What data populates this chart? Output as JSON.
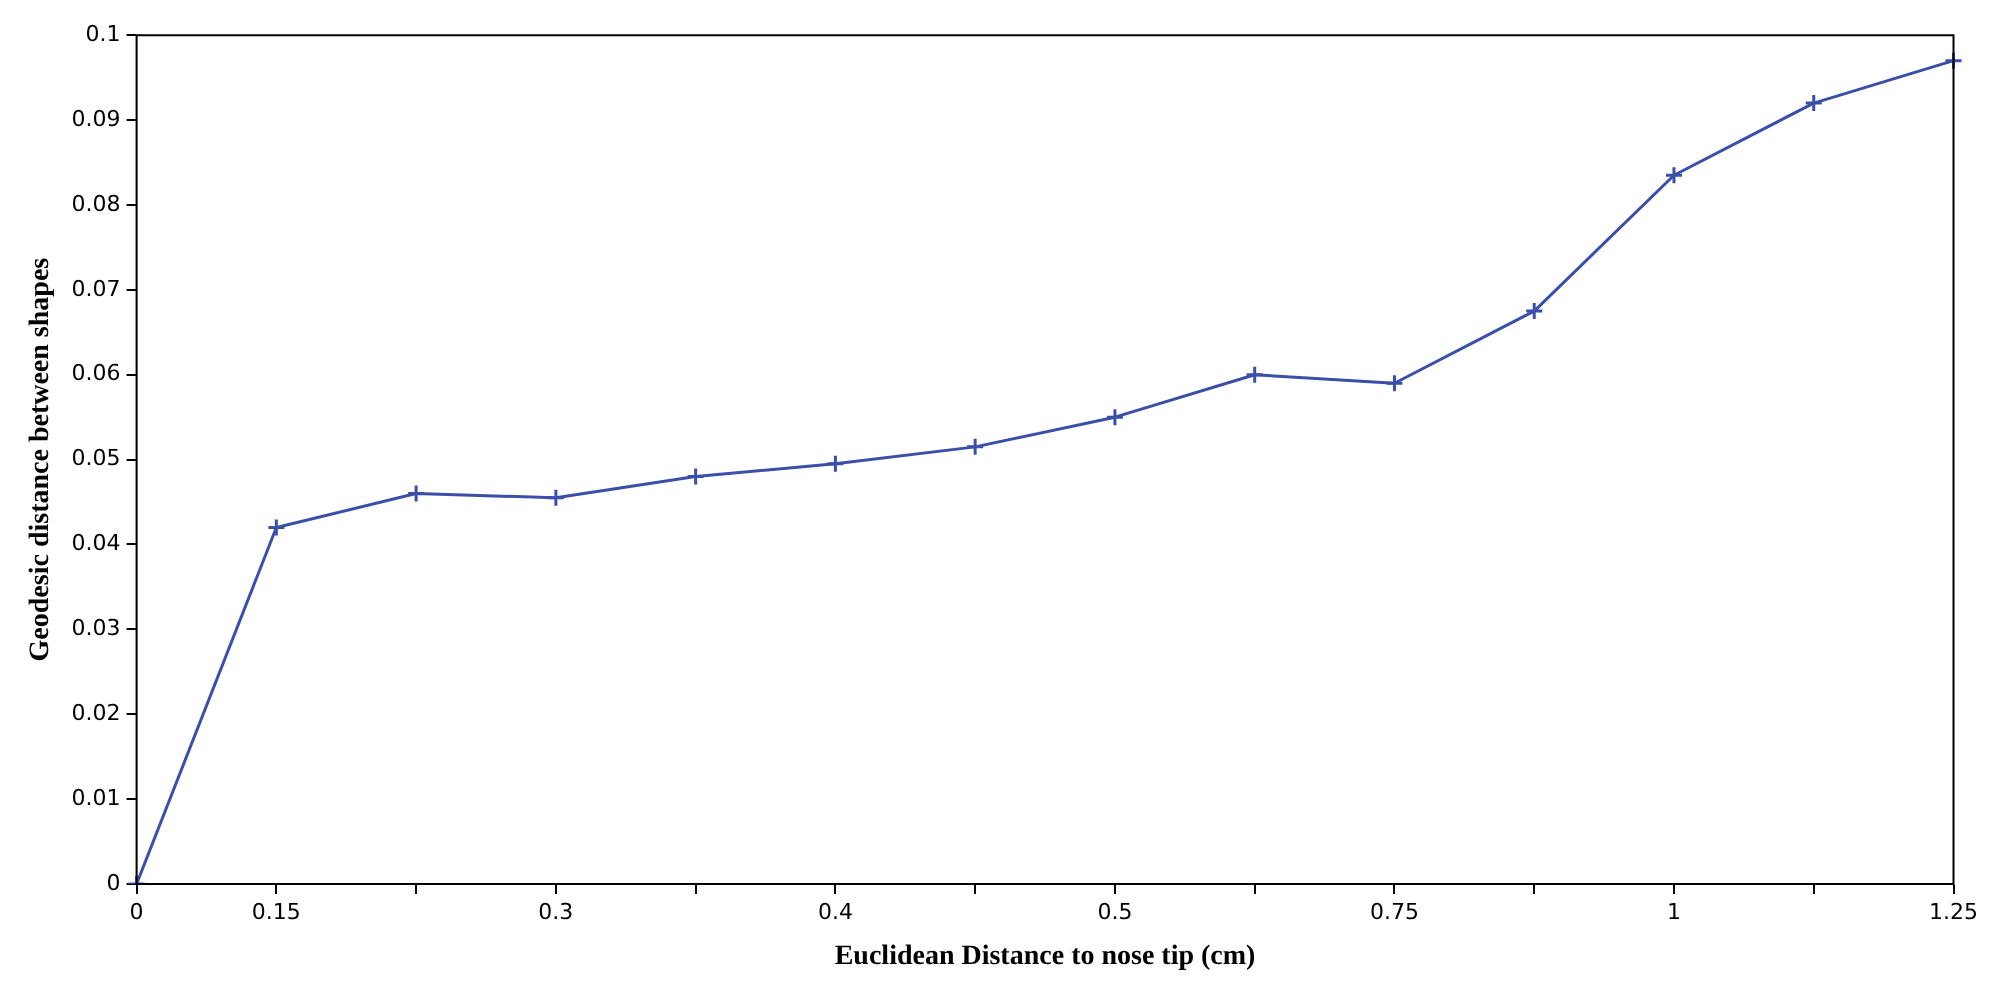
{
  "chart_data": {
    "type": "line",
    "xlabel": "Euclidean Distance to nose tip (cm)",
    "ylabel": "Geodesic distance between shapes",
    "categories": [
      "0",
      "0.15",
      null,
      "0.3",
      null,
      "0.4",
      null,
      "0.5",
      null,
      "0.75",
      null,
      "1",
      null,
      "1.25"
    ],
    "series": [
      {
        "color": "#3a4fa8",
        "values": [
          0,
          0.042,
          0.046,
          0.0455,
          0.048,
          0.0495,
          0.0515,
          0.055,
          0.06,
          0.059,
          0.0675,
          0.0835,
          0.092,
          0.097
        ]
      }
    ],
    "ylim": [
      0,
      0.1
    ],
    "yticks": [
      0,
      0.01,
      0.02,
      0.03,
      0.04,
      0.05,
      0.06,
      0.07,
      0.08,
      0.09,
      0.1
    ],
    "grid": false,
    "legend": false,
    "marker": "cross",
    "line_style": "solid"
  }
}
